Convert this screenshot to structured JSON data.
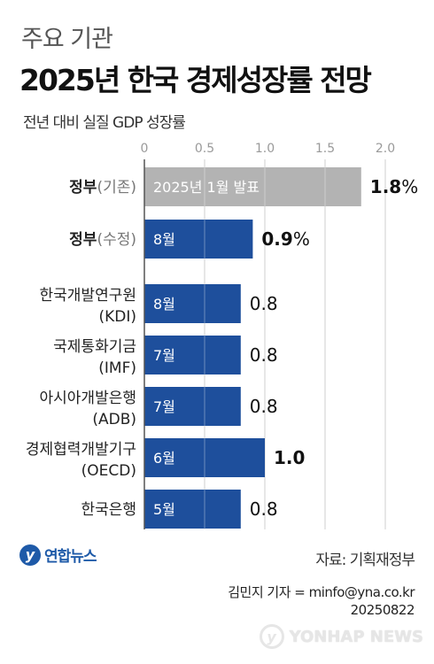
{
  "header": {
    "supertitle": "주요 기관",
    "title": "2025년 한국 경제성장률 전망",
    "subtitle": "전년 대비 실질 GDP 성장률"
  },
  "chart_data": {
    "type": "bar",
    "orientation": "horizontal",
    "xlim": [
      0,
      2.0
    ],
    "ticks": [
      "0",
      "0.5",
      "1.0",
      "1.5",
      "2.0"
    ],
    "tick_values": [
      0,
      0.5,
      1.0,
      1.5,
      2.0
    ],
    "grid": true,
    "bars": [
      {
        "name_bold": "정부",
        "name_suffix": "(기존)",
        "name_line2": "",
        "bar_label": "2025년 1월 발표",
        "value": 1.8,
        "value_label": "1.8",
        "unit": "%",
        "color": "#b3b3b3"
      },
      {
        "name_bold": "정부",
        "name_suffix": "(수정)",
        "name_line2": "",
        "bar_label": "8월",
        "value": 0.9,
        "value_label": "0.9",
        "unit": "%",
        "color": "#1e4f9c"
      },
      {
        "name_bold": "",
        "name_suffix": "한국개발연구원",
        "name_line2": "(KDI)",
        "bar_label": "8월",
        "value": 0.8,
        "value_label": "0.8",
        "unit": "",
        "color": "#1e4f9c"
      },
      {
        "name_bold": "",
        "name_suffix": "국제통화기금",
        "name_line2": "(IMF)",
        "bar_label": "7월",
        "value": 0.8,
        "value_label": "0.8",
        "unit": "",
        "color": "#1e4f9c"
      },
      {
        "name_bold": "",
        "name_suffix": "아시아개발은행",
        "name_line2": "(ADB)",
        "bar_label": "7월",
        "value": 0.8,
        "value_label": "0.8",
        "unit": "",
        "color": "#1e4f9c"
      },
      {
        "name_bold": "",
        "name_suffix": "경제협력개발기구",
        "name_line2": "(OECD)",
        "bar_label": "6월",
        "value": 1.0,
        "value_label": "1.0",
        "unit": "",
        "color": "#1e4f9c"
      },
      {
        "name_bold": "",
        "name_suffix": "한국은행",
        "name_line2": "",
        "bar_label": "5월",
        "value": 0.8,
        "value_label": "0.8",
        "unit": "",
        "color": "#1e4f9c"
      }
    ]
  },
  "footer": {
    "logo_mark": "y",
    "logo_text": "연합뉴스",
    "source": "자료: 기획재정부",
    "credit_line1": "김민지 기자 = minfo@yna.co.kr",
    "credit_line2": "20250822",
    "watermark_mark": "y",
    "watermark_text": "YONHAP NEWS"
  }
}
